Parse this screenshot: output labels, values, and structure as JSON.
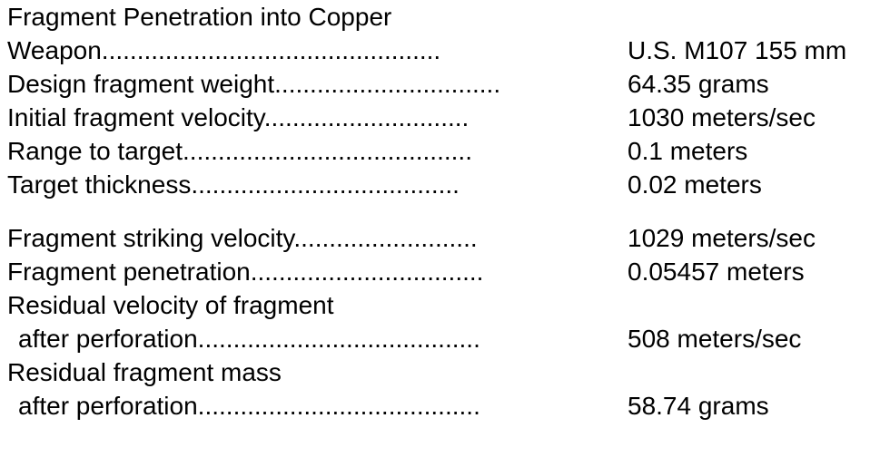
{
  "title": "Fragment Penetration into Copper",
  "inputs": [
    {
      "label": "Weapon",
      "leader": "................................................",
      "value": "U.S. M107 155 mm"
    },
    {
      "label": "Design fragment weight",
      "leader": "................................",
      "value": "64.35 grams"
    },
    {
      "label": "Initial fragment velocity",
      "leader": ".............................",
      "value": "1030 meters/sec"
    },
    {
      "label": "Range to target",
      "leader": ".........................................",
      "value": "0.1 meters"
    },
    {
      "label": "Target thickness",
      "leader": "......................................",
      "value": "0.02 meters"
    }
  ],
  "results": [
    {
      "label": "Fragment striking velocity",
      "leader": "..........................",
      "value": "1029 meters/sec"
    },
    {
      "label": "Fragment penetration",
      "leader": ".................................",
      "value": "0.05457 meters"
    }
  ],
  "residual_velocity": {
    "heading": "Residual velocity of fragment",
    "label": "after perforation",
    "leader": "........................................",
    "value": "508 meters/sec"
  },
  "residual_mass": {
    "heading": "Residual fragment mass",
    "label": "after perforation",
    "leader": "........................................",
    "value": "58.74 grams"
  }
}
